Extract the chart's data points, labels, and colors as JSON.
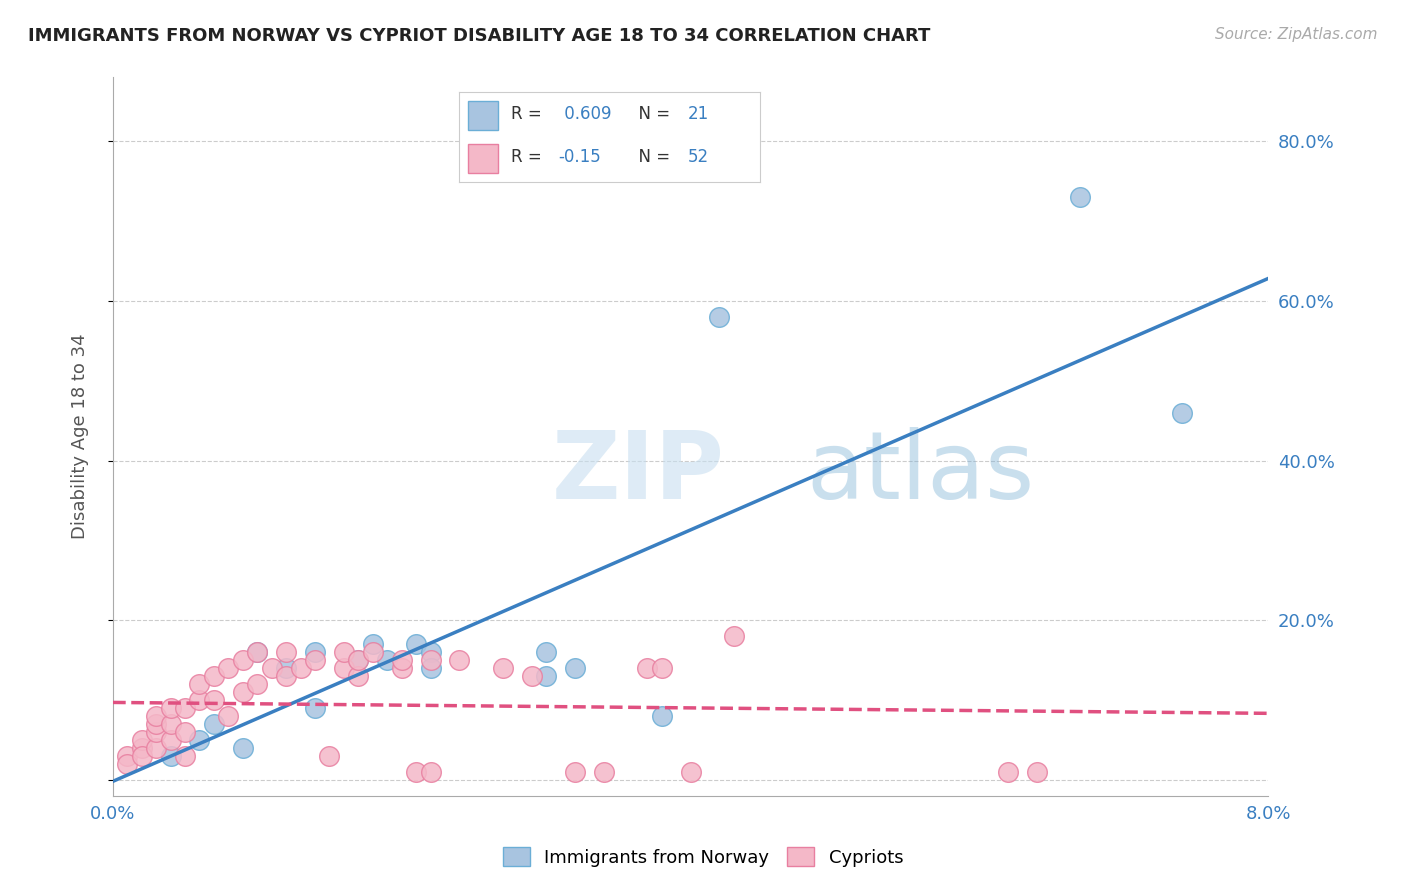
{
  "title": "IMMIGRANTS FROM NORWAY VS CYPRIOT DISABILITY AGE 18 TO 34 CORRELATION CHART",
  "source": "Source: ZipAtlas.com",
  "ylabel": "Disability Age 18 to 34",
  "xlim": [
    0.0,
    0.08
  ],
  "ylim": [
    -0.02,
    0.88
  ],
  "xticks": [
    0.0,
    0.02,
    0.04,
    0.06,
    0.08
  ],
  "xtick_labels": [
    "0.0%",
    "",
    "",
    "",
    "8.0%"
  ],
  "ytick_positions": [
    0.0,
    0.2,
    0.4,
    0.6,
    0.8
  ],
  "ytick_labels": [
    "",
    "20.0%",
    "40.0%",
    "60.0%",
    "80.0%"
  ],
  "norway_R": 0.609,
  "norway_N": 21,
  "cyprus_R": -0.15,
  "cyprus_N": 52,
  "norway_color": "#a8c4e0",
  "norway_edge_color": "#6baed6",
  "norway_line_color": "#3a7fc1",
  "cyprus_color": "#f4b8c8",
  "cyprus_edge_color": "#e87fa0",
  "cyprus_line_color": "#e05080",
  "watermark_zip": "ZIP",
  "watermark_atlas": "atlas",
  "background_color": "#ffffff",
  "norway_scatter_x": [
    0.004,
    0.006,
    0.007,
    0.009,
    0.01,
    0.012,
    0.014,
    0.014,
    0.017,
    0.018,
    0.019,
    0.021,
    0.022,
    0.022,
    0.03,
    0.03,
    0.032,
    0.038,
    0.042,
    0.067,
    0.074
  ],
  "norway_scatter_y": [
    0.03,
    0.05,
    0.07,
    0.04,
    0.16,
    0.14,
    0.16,
    0.09,
    0.15,
    0.17,
    0.15,
    0.17,
    0.16,
    0.14,
    0.13,
    0.16,
    0.14,
    0.08,
    0.58,
    0.73,
    0.46
  ],
  "cyprus_scatter_x": [
    0.001,
    0.001,
    0.002,
    0.002,
    0.002,
    0.003,
    0.003,
    0.003,
    0.003,
    0.004,
    0.004,
    0.004,
    0.005,
    0.005,
    0.005,
    0.006,
    0.006,
    0.007,
    0.007,
    0.008,
    0.008,
    0.009,
    0.009,
    0.01,
    0.01,
    0.011,
    0.012,
    0.012,
    0.013,
    0.014,
    0.015,
    0.016,
    0.016,
    0.017,
    0.017,
    0.018,
    0.02,
    0.02,
    0.021,
    0.022,
    0.022,
    0.024,
    0.027,
    0.029,
    0.032,
    0.034,
    0.037,
    0.038,
    0.04,
    0.043,
    0.062,
    0.064
  ],
  "cyprus_scatter_y": [
    0.03,
    0.02,
    0.04,
    0.05,
    0.03,
    0.04,
    0.06,
    0.07,
    0.08,
    0.05,
    0.07,
    0.09,
    0.03,
    0.06,
    0.09,
    0.1,
    0.12,
    0.1,
    0.13,
    0.08,
    0.14,
    0.11,
    0.15,
    0.12,
    0.16,
    0.14,
    0.13,
    0.16,
    0.14,
    0.15,
    0.03,
    0.14,
    0.16,
    0.13,
    0.15,
    0.16,
    0.14,
    0.15,
    0.01,
    0.01,
    0.15,
    0.15,
    0.14,
    0.13,
    0.01,
    0.01,
    0.14,
    0.14,
    0.01,
    0.18,
    0.01,
    0.01
  ]
}
